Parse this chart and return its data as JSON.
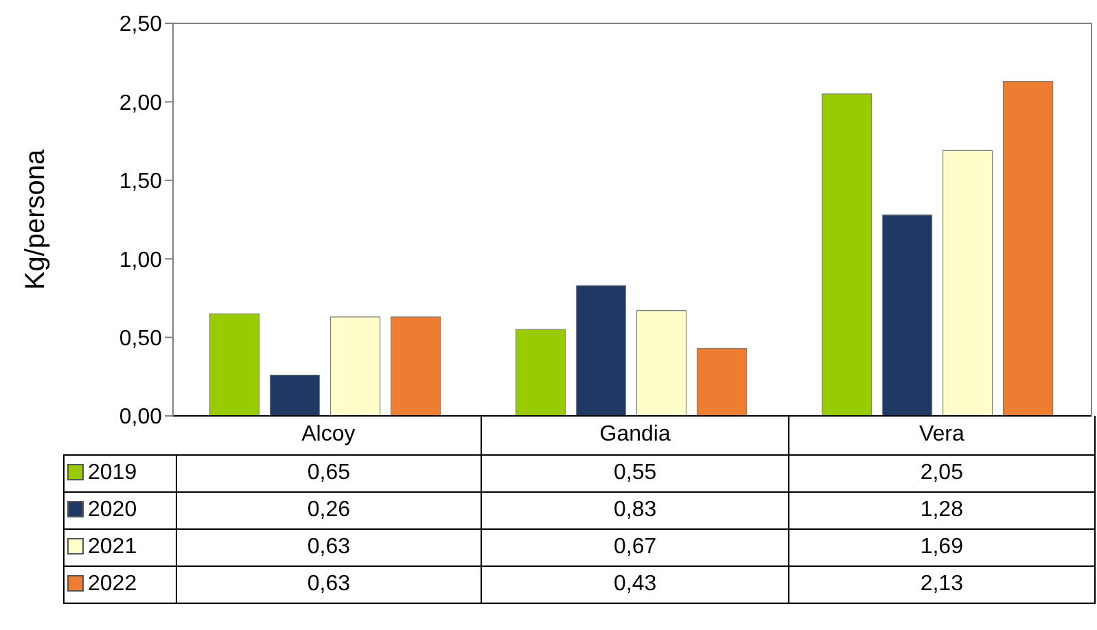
{
  "chart_data": {
    "type": "bar",
    "ylabel": "Kg/persona",
    "categories": [
      "Alcoy",
      "Gandia",
      "Vera"
    ],
    "series": [
      {
        "name": "2019",
        "color": "#99cc00",
        "values": [
          0.65,
          0.55,
          2.05
        ],
        "value_labels": [
          "0,65",
          "0,55",
          "2,05"
        ]
      },
      {
        "name": "2020",
        "color": "#1f3864",
        "values": [
          0.26,
          0.83,
          1.28
        ],
        "value_labels": [
          "0,26",
          "0,83",
          "1,28"
        ]
      },
      {
        "name": "2021",
        "color": "#ffffcc",
        "values": [
          0.63,
          0.67,
          1.69
        ],
        "value_labels": [
          "0,63",
          "0,67",
          "1,69"
        ]
      },
      {
        "name": "2022",
        "color": "#ed7d31",
        "values": [
          0.63,
          0.43,
          2.13
        ],
        "value_labels": [
          "0,63",
          "0,43",
          "2,13"
        ]
      }
    ],
    "ylim": [
      0,
      2.5
    ],
    "yticks": [
      {
        "value": 0,
        "label": "0,00"
      },
      {
        "value": 0.5,
        "label": "0,50"
      },
      {
        "value": 1,
        "label": "1,00"
      },
      {
        "value": 1.5,
        "label": "1,50"
      },
      {
        "value": 2,
        "label": "2,00"
      },
      {
        "value": 2.5,
        "label": "2,50"
      }
    ],
    "grid": false,
    "legend": "bottom"
  }
}
